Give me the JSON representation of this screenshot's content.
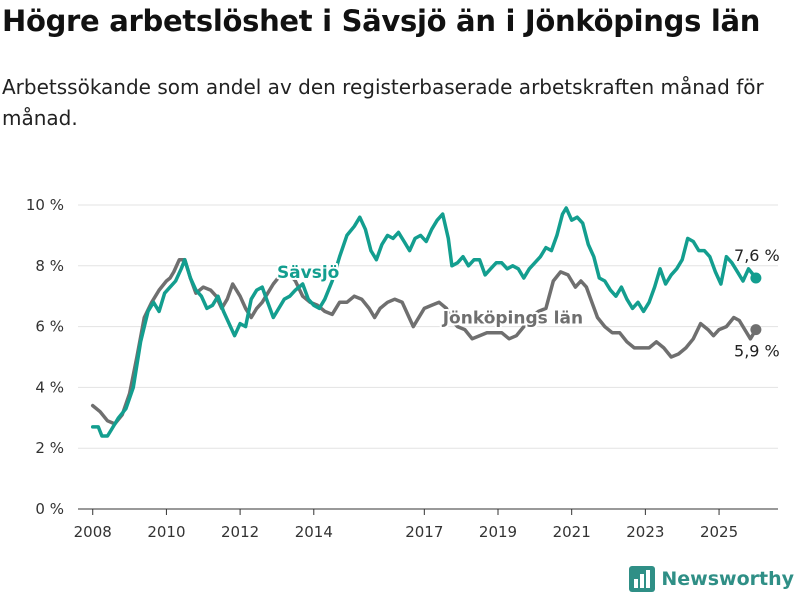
{
  "title": "Högre arbetslöshet i Sävsjö än i Jönköpings län",
  "subtitle": "Arbetssökande som andel av den registerbaserade arbetskraften månad för månad.",
  "brand": {
    "name": "Newsworthy",
    "icon": "bar-chart-logo-icon"
  },
  "chart_data": {
    "type": "line",
    "title": "Högre arbetslöshet i Sävsjö än i Jönköpings län",
    "subtitle": "Arbetssökande som andel av den registerbaserade arbetskraften månad för månad.",
    "xlabel": "",
    "ylabel": "",
    "xlim": [
      2007.6,
      2026.6
    ],
    "ylim": [
      0,
      10
    ],
    "x_ticks": [
      2008,
      2010,
      2012,
      2014,
      2017,
      2019,
      2021,
      2023,
      2025
    ],
    "y_ticks": [
      0,
      2,
      4,
      6,
      8,
      10
    ],
    "y_tick_labels": [
      "0 %",
      "2 %",
      "4 %",
      "6 %",
      "8 %",
      "10 %"
    ],
    "grid": "horizontal",
    "legend": "inline labels",
    "series": [
      {
        "name": "Jönköpings län",
        "color": "#6f6f6f",
        "label_at": [
          2017.5,
          6.1
        ],
        "end_label": "5,9 %",
        "points": [
          [
            2008.0,
            3.4
          ],
          [
            2008.2,
            3.2
          ],
          [
            2008.4,
            2.9
          ],
          [
            2008.6,
            2.8
          ],
          [
            2008.8,
            3.1
          ],
          [
            2009.0,
            3.8
          ],
          [
            2009.2,
            5.0
          ],
          [
            2009.4,
            6.3
          ],
          [
            2009.6,
            6.8
          ],
          [
            2009.8,
            7.2
          ],
          [
            2010.0,
            7.5
          ],
          [
            2010.1,
            7.6
          ],
          [
            2010.2,
            7.8
          ],
          [
            2010.35,
            8.2
          ],
          [
            2010.5,
            8.2
          ],
          [
            2010.65,
            7.6
          ],
          [
            2010.8,
            7.1
          ],
          [
            2011.0,
            7.3
          ],
          [
            2011.2,
            7.2
          ],
          [
            2011.35,
            7.0
          ],
          [
            2011.5,
            6.6
          ],
          [
            2011.65,
            6.9
          ],
          [
            2011.8,
            7.4
          ],
          [
            2012.0,
            7.0
          ],
          [
            2012.15,
            6.6
          ],
          [
            2012.3,
            6.3
          ],
          [
            2012.45,
            6.6
          ],
          [
            2012.6,
            6.8
          ],
          [
            2012.75,
            7.1
          ],
          [
            2012.9,
            7.4
          ],
          [
            2013.1,
            7.7
          ],
          [
            2013.3,
            7.8
          ],
          [
            2013.5,
            7.5
          ],
          [
            2013.7,
            7.0
          ],
          [
            2013.9,
            6.8
          ],
          [
            2014.1,
            6.7
          ],
          [
            2014.3,
            6.5
          ],
          [
            2014.5,
            6.4
          ],
          [
            2014.7,
            6.8
          ],
          [
            2014.9,
            6.8
          ],
          [
            2015.1,
            7.0
          ],
          [
            2015.3,
            6.9
          ],
          [
            2015.5,
            6.6
          ],
          [
            2015.65,
            6.3
          ],
          [
            2015.8,
            6.6
          ],
          [
            2016.0,
            6.8
          ],
          [
            2016.2,
            6.9
          ],
          [
            2016.4,
            6.8
          ],
          [
            2016.55,
            6.4
          ],
          [
            2016.7,
            6.0
          ],
          [
            2016.85,
            6.3
          ],
          [
            2017.0,
            6.6
          ],
          [
            2017.2,
            6.7
          ],
          [
            2017.4,
            6.8
          ],
          [
            2017.6,
            6.6
          ],
          [
            2017.75,
            6.2
          ],
          [
            2017.9,
            6.0
          ],
          [
            2018.1,
            5.9
          ],
          [
            2018.3,
            5.6
          ],
          [
            2018.5,
            5.7
          ],
          [
            2018.7,
            5.8
          ],
          [
            2018.9,
            5.8
          ],
          [
            2019.1,
            5.8
          ],
          [
            2019.3,
            5.6
          ],
          [
            2019.5,
            5.7
          ],
          [
            2019.7,
            6.0
          ],
          [
            2019.9,
            6.3
          ],
          [
            2020.1,
            6.5
          ],
          [
            2020.3,
            6.6
          ],
          [
            2020.5,
            7.5
          ],
          [
            2020.7,
            7.8
          ],
          [
            2020.9,
            7.7
          ],
          [
            2021.1,
            7.3
          ],
          [
            2021.25,
            7.5
          ],
          [
            2021.4,
            7.3
          ],
          [
            2021.55,
            6.8
          ],
          [
            2021.7,
            6.3
          ],
          [
            2021.9,
            6.0
          ],
          [
            2022.1,
            5.8
          ],
          [
            2022.3,
            5.8
          ],
          [
            2022.5,
            5.5
          ],
          [
            2022.7,
            5.3
          ],
          [
            2022.9,
            5.3
          ],
          [
            2023.1,
            5.3
          ],
          [
            2023.3,
            5.5
          ],
          [
            2023.5,
            5.3
          ],
          [
            2023.7,
            5.0
          ],
          [
            2023.9,
            5.1
          ],
          [
            2024.1,
            5.3
          ],
          [
            2024.3,
            5.6
          ],
          [
            2024.5,
            6.1
          ],
          [
            2024.7,
            5.9
          ],
          [
            2024.85,
            5.7
          ],
          [
            2025.0,
            5.9
          ],
          [
            2025.2,
            6.0
          ],
          [
            2025.4,
            6.3
          ],
          [
            2025.55,
            6.2
          ],
          [
            2025.7,
            5.9
          ],
          [
            2025.85,
            5.6
          ],
          [
            2026.0,
            5.9
          ]
        ]
      },
      {
        "name": "Sävsjö",
        "color": "#139e8f",
        "label_at": [
          2013.0,
          7.6
        ],
        "end_label": "7,6 %",
        "points": [
          [
            2008.0,
            2.7
          ],
          [
            2008.15,
            2.7
          ],
          [
            2008.25,
            2.4
          ],
          [
            2008.4,
            2.4
          ],
          [
            2008.5,
            2.6
          ],
          [
            2008.7,
            3.0
          ],
          [
            2008.9,
            3.3
          ],
          [
            2009.1,
            4.0
          ],
          [
            2009.3,
            5.5
          ],
          [
            2009.5,
            6.5
          ],
          [
            2009.65,
            6.8
          ],
          [
            2009.8,
            6.5
          ],
          [
            2009.95,
            7.1
          ],
          [
            2010.1,
            7.3
          ],
          [
            2010.25,
            7.5
          ],
          [
            2010.4,
            7.9
          ],
          [
            2010.5,
            8.2
          ],
          [
            2010.65,
            7.6
          ],
          [
            2010.8,
            7.2
          ],
          [
            2010.95,
            7.0
          ],
          [
            2011.1,
            6.6
          ],
          [
            2011.25,
            6.7
          ],
          [
            2011.4,
            7.0
          ],
          [
            2011.55,
            6.5
          ],
          [
            2011.7,
            6.1
          ],
          [
            2011.85,
            5.7
          ],
          [
            2012.0,
            6.1
          ],
          [
            2012.15,
            6.0
          ],
          [
            2012.3,
            6.9
          ],
          [
            2012.45,
            7.2
          ],
          [
            2012.6,
            7.3
          ],
          [
            2012.75,
            6.8
          ],
          [
            2012.9,
            6.3
          ],
          [
            2013.05,
            6.6
          ],
          [
            2013.2,
            6.9
          ],
          [
            2013.35,
            7.0
          ],
          [
            2013.5,
            7.2
          ],
          [
            2013.7,
            7.4
          ],
          [
            2013.85,
            6.9
          ],
          [
            2014.0,
            6.7
          ],
          [
            2014.15,
            6.6
          ],
          [
            2014.3,
            6.9
          ],
          [
            2014.5,
            7.5
          ],
          [
            2014.7,
            8.3
          ],
          [
            2014.9,
            9.0
          ],
          [
            2015.1,
            9.3
          ],
          [
            2015.25,
            9.6
          ],
          [
            2015.4,
            9.2
          ],
          [
            2015.55,
            8.5
          ],
          [
            2015.7,
            8.2
          ],
          [
            2015.85,
            8.7
          ],
          [
            2016.0,
            9.0
          ],
          [
            2016.15,
            8.9
          ],
          [
            2016.3,
            9.1
          ],
          [
            2016.45,
            8.8
          ],
          [
            2016.6,
            8.5
          ],
          [
            2016.75,
            8.9
          ],
          [
            2016.9,
            9.0
          ],
          [
            2017.05,
            8.8
          ],
          [
            2017.2,
            9.2
          ],
          [
            2017.35,
            9.5
          ],
          [
            2017.5,
            9.7
          ],
          [
            2017.65,
            8.9
          ],
          [
            2017.75,
            8.0
          ],
          [
            2017.9,
            8.1
          ],
          [
            2018.05,
            8.3
          ],
          [
            2018.2,
            8.0
          ],
          [
            2018.35,
            8.2
          ],
          [
            2018.5,
            8.2
          ],
          [
            2018.65,
            7.7
          ],
          [
            2018.8,
            7.9
          ],
          [
            2018.95,
            8.1
          ],
          [
            2019.1,
            8.1
          ],
          [
            2019.25,
            7.9
          ],
          [
            2019.4,
            8.0
          ],
          [
            2019.55,
            7.9
          ],
          [
            2019.7,
            7.6
          ],
          [
            2019.85,
            7.9
          ],
          [
            2020.0,
            8.1
          ],
          [
            2020.15,
            8.3
          ],
          [
            2020.3,
            8.6
          ],
          [
            2020.45,
            8.5
          ],
          [
            2020.6,
            9.0
          ],
          [
            2020.75,
            9.7
          ],
          [
            2020.85,
            9.9
          ],
          [
            2021.0,
            9.5
          ],
          [
            2021.15,
            9.6
          ],
          [
            2021.3,
            9.4
          ],
          [
            2021.45,
            8.7
          ],
          [
            2021.6,
            8.3
          ],
          [
            2021.75,
            7.6
          ],
          [
            2021.9,
            7.5
          ],
          [
            2022.05,
            7.2
          ],
          [
            2022.2,
            7.0
          ],
          [
            2022.35,
            7.3
          ],
          [
            2022.5,
            6.9
          ],
          [
            2022.65,
            6.6
          ],
          [
            2022.8,
            6.8
          ],
          [
            2022.95,
            6.5
          ],
          [
            2023.1,
            6.8
          ],
          [
            2023.25,
            7.3
          ],
          [
            2023.4,
            7.9
          ],
          [
            2023.55,
            7.4
          ],
          [
            2023.7,
            7.7
          ],
          [
            2023.85,
            7.9
          ],
          [
            2024.0,
            8.2
          ],
          [
            2024.15,
            8.9
          ],
          [
            2024.3,
            8.8
          ],
          [
            2024.45,
            8.5
          ],
          [
            2024.6,
            8.5
          ],
          [
            2024.75,
            8.3
          ],
          [
            2024.9,
            7.8
          ],
          [
            2025.05,
            7.4
          ],
          [
            2025.2,
            8.3
          ],
          [
            2025.35,
            8.1
          ],
          [
            2025.5,
            7.8
          ],
          [
            2025.65,
            7.5
          ],
          [
            2025.8,
            7.9
          ],
          [
            2026.0,
            7.6
          ]
        ]
      }
    ]
  }
}
